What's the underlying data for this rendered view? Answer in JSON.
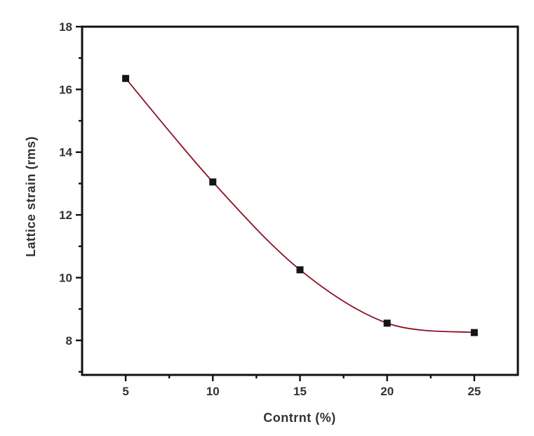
{
  "figure": {
    "background": "#ffffff"
  },
  "chart_data": {
    "type": "line",
    "title": "",
    "xlabel": "Contrnt (%)",
    "ylabel": "Lattice strain (rms)",
    "x": [
      5,
      10,
      15,
      20,
      25
    ],
    "y": [
      16.35,
      13.05,
      10.25,
      8.55,
      8.25
    ],
    "series": [
      {
        "name": "Lattice strain",
        "x": [
          5,
          10,
          15,
          20,
          25
        ],
        "values": [
          16.35,
          13.05,
          10.25,
          8.55,
          8.25
        ]
      }
    ],
    "xlim": [
      2.5,
      27.5
    ],
    "ylim": [
      6.9,
      18
    ],
    "x_major_ticks": [
      5,
      10,
      15,
      20,
      25
    ],
    "x_minor_ticks": [
      7.5,
      12.5,
      17.5,
      22.5
    ],
    "y_major_ticks": [
      8,
      10,
      12,
      14,
      16,
      18
    ],
    "y_minor_ticks": [
      7,
      9,
      11,
      13,
      15,
      17
    ],
    "grid": false,
    "legend_position": "none",
    "marker": "square",
    "colors": {
      "line": "#8c1026",
      "marker": "#151515",
      "axis": "#111111",
      "text": "#333333"
    }
  }
}
